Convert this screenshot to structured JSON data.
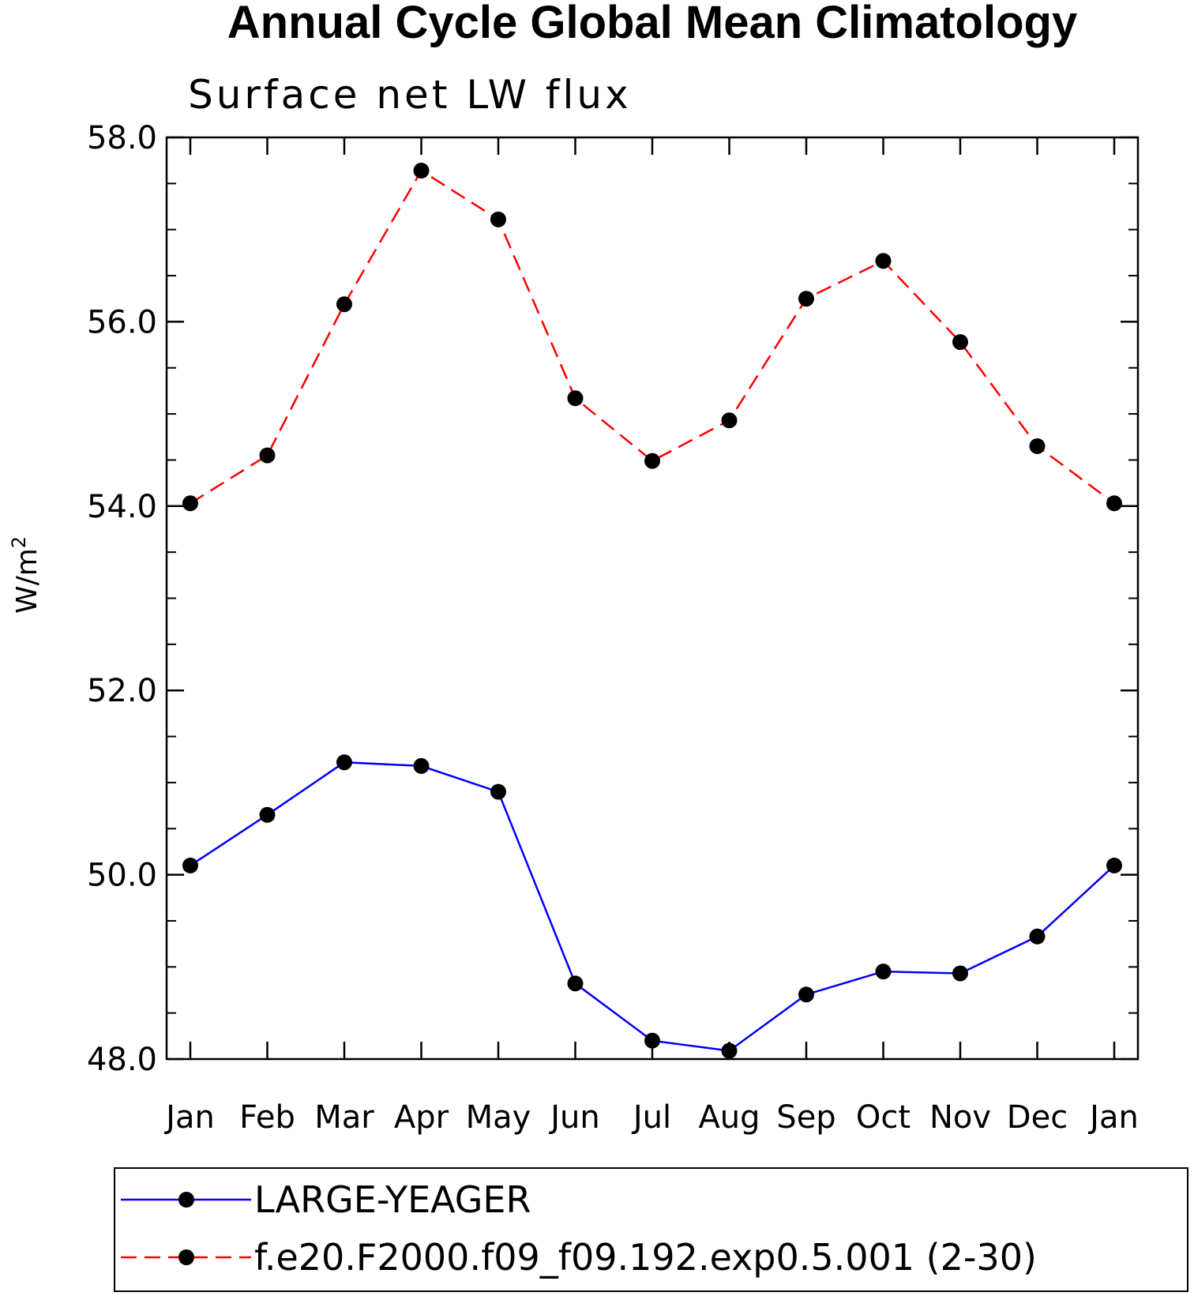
{
  "chart_data": {
    "type": "line",
    "title": "Annual Cycle Global Mean Climatology",
    "subtitle": "Surface net LW flux",
    "ylabel": "W/m",
    "ylabel_superscript": "2",
    "xlabel": "",
    "categories": [
      "Jan",
      "Feb",
      "Mar",
      "Apr",
      "May",
      "Jun",
      "Jul",
      "Aug",
      "Sep",
      "Oct",
      "Nov",
      "Dec",
      "Jan"
    ],
    "ylim": [
      48.0,
      58.0
    ],
    "yticks": [
      48.0,
      50.0,
      52.0,
      54.0,
      56.0,
      58.0
    ],
    "ytick_labels": [
      "48.0",
      "50.0",
      "52.0",
      "54.0",
      "56.0",
      "58.0"
    ],
    "yminor_step": 0.5,
    "grid": false,
    "legend_position": "bottom",
    "series": [
      {
        "name": "LARGE-YEAGER",
        "color": "#0000ff",
        "dash": "solid",
        "marker": "filled-circle",
        "values": [
          50.1,
          50.65,
          51.22,
          51.18,
          50.9,
          48.82,
          48.2,
          48.09,
          48.7,
          48.95,
          48.93,
          49.33,
          50.1
        ]
      },
      {
        "name": "f.e20.F2000.f09_f09.192.exp0.5.001 (2-30)",
        "color": "#ff0000",
        "dash": "dashed",
        "marker": "filled-circle",
        "values": [
          54.03,
          54.55,
          56.19,
          57.64,
          57.11,
          55.17,
          54.49,
          54.93,
          56.25,
          56.66,
          55.78,
          54.65,
          54.03
        ]
      }
    ]
  }
}
